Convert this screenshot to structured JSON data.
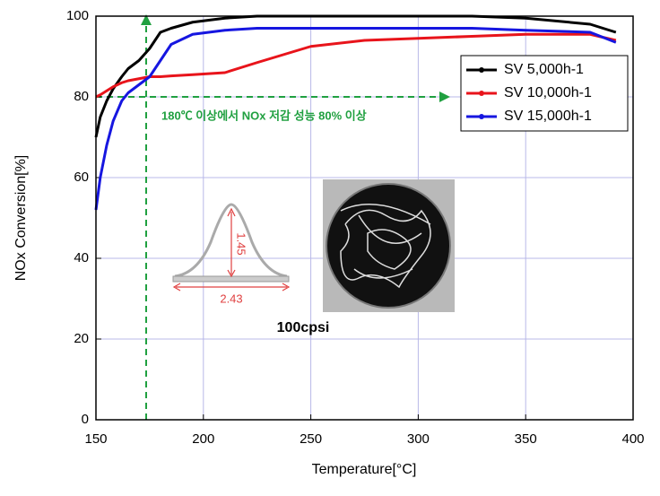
{
  "chart_data": {
    "type": "line",
    "xlabel": "Temperature[°C]",
    "ylabel": "NOx Conversion[%]",
    "xlim": [
      150,
      400
    ],
    "ylim": [
      0,
      100
    ],
    "xticks": [
      150,
      200,
      250,
      300,
      350,
      400
    ],
    "yticks": [
      0,
      20,
      40,
      60,
      80,
      100
    ],
    "grid": true,
    "legend": "upper right",
    "x": [
      150,
      152,
      155,
      158,
      162,
      165,
      170,
      175,
      180,
      185,
      195,
      210,
      225,
      250,
      275,
      300,
      325,
      350,
      380,
      392
    ],
    "series": [
      {
        "name": "SV 5,000h-1",
        "color": "#000000",
        "values": [
          70,
          75,
          79,
          82,
          85,
          87,
          89,
          92,
          96,
          97,
          98.5,
          99.5,
          100,
          100,
          100,
          100,
          100,
          99.5,
          98,
          96
        ]
      },
      {
        "name": "SV 10,000h-1",
        "color": "#e8141b",
        "values": [
          80,
          80.5,
          81.5,
          82.5,
          83.5,
          84,
          84.5,
          85,
          85,
          85.2,
          85.5,
          86,
          88.5,
          92.5,
          94,
          94.5,
          95,
          95.5,
          95.5,
          94
        ]
      },
      {
        "name": "SV 15,000h-1",
        "color": "#1616e0",
        "values": [
          52,
          60,
          68,
          74,
          79,
          81,
          83,
          85,
          89,
          93,
          95.5,
          96.5,
          97,
          97,
          97,
          97,
          97,
          96.5,
          96,
          93.5
        ]
      }
    ],
    "annotation": "180℃ 이상에서 NOx 저감 성능 80% 이상",
    "inset_labels": {
      "height": "1.45",
      "width": "2.43",
      "cell_density": "100cpsi"
    }
  }
}
